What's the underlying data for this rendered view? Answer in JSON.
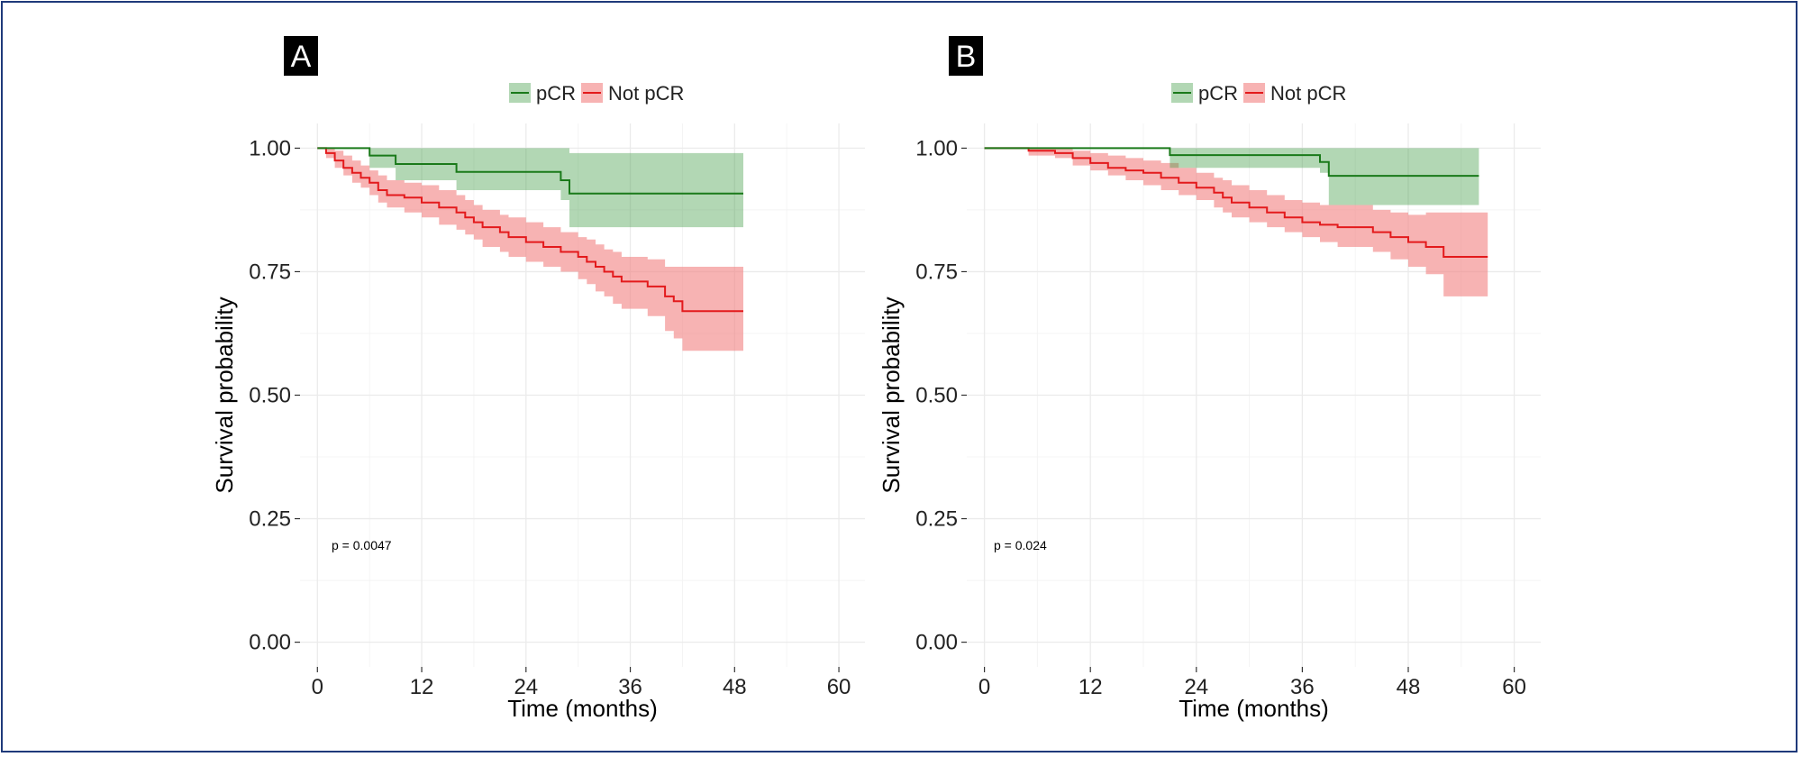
{
  "figure": {
    "border_color": "#1f3a7a"
  },
  "colors": {
    "pcr_line": "#1a7a1a",
    "pcr_band": "#3e9a44",
    "notpcr_line": "#e31a1c",
    "notpcr_band": "#f28080",
    "grid": "#ebebeb",
    "label_bg": "#000000"
  },
  "legend": {
    "items": [
      "pCR",
      "Not pCR"
    ]
  },
  "chart_data": [
    {
      "type": "line",
      "panel_label": "A",
      "xlabel": "Time (months)",
      "ylabel": "Survival probability",
      "xlim": [
        -2,
        63
      ],
      "ylim": [
        -0.05,
        1.05
      ],
      "xticks": [
        0,
        12,
        24,
        36,
        48,
        60
      ],
      "yticks": [
        0.0,
        0.25,
        0.5,
        0.75,
        1.0
      ],
      "ytick_labels": [
        "0.00",
        "0.25",
        "0.50",
        "0.75",
        "1.00"
      ],
      "p_value": "p = 0.0047",
      "series": [
        {
          "name": "pCR",
          "step": [
            [
              0,
              1.0
            ],
            [
              6,
              0.985
            ],
            [
              9,
              0.968
            ],
            [
              16,
              0.952
            ],
            [
              28,
              0.935
            ],
            [
              29,
              0.908
            ],
            [
              49,
              0.908
            ]
          ],
          "lower": [
            [
              0,
              1.0
            ],
            [
              6,
              0.96
            ],
            [
              9,
              0.935
            ],
            [
              16,
              0.915
            ],
            [
              28,
              0.895
            ],
            [
              29,
              0.84
            ],
            [
              49,
              0.835
            ]
          ],
          "upper": [
            [
              0,
              1.0
            ],
            [
              6,
              1.0
            ],
            [
              9,
              1.0
            ],
            [
              16,
              1.0
            ],
            [
              28,
              1.0
            ],
            [
              29,
              0.99
            ],
            [
              49,
              0.99
            ]
          ]
        },
        {
          "name": "Not pCR",
          "step": [
            [
              0,
              1.0
            ],
            [
              1,
              0.99
            ],
            [
              2,
              0.975
            ],
            [
              3,
              0.96
            ],
            [
              4,
              0.95
            ],
            [
              5,
              0.94
            ],
            [
              6,
              0.93
            ],
            [
              7,
              0.915
            ],
            [
              8,
              0.905
            ],
            [
              10,
              0.9
            ],
            [
              12,
              0.89
            ],
            [
              14,
              0.88
            ],
            [
              16,
              0.87
            ],
            [
              17,
              0.86
            ],
            [
              18,
              0.85
            ],
            [
              19,
              0.84
            ],
            [
              21,
              0.83
            ],
            [
              22,
              0.82
            ],
            [
              24,
              0.81
            ],
            [
              26,
              0.8
            ],
            [
              28,
              0.79
            ],
            [
              30,
              0.78
            ],
            [
              31,
              0.77
            ],
            [
              32,
              0.76
            ],
            [
              33,
              0.75
            ],
            [
              34,
              0.74
            ],
            [
              35,
              0.73
            ],
            [
              38,
              0.72
            ],
            [
              40,
              0.7
            ],
            [
              41,
              0.69
            ],
            [
              42,
              0.67
            ],
            [
              49,
              0.67
            ]
          ],
          "lower": [
            [
              0,
              1.0
            ],
            [
              1,
              0.98
            ],
            [
              2,
              0.96
            ],
            [
              3,
              0.945
            ],
            [
              4,
              0.93
            ],
            [
              5,
              0.92
            ],
            [
              6,
              0.905
            ],
            [
              7,
              0.89
            ],
            [
              8,
              0.88
            ],
            [
              10,
              0.87
            ],
            [
              12,
              0.86
            ],
            [
              14,
              0.845
            ],
            [
              16,
              0.835
            ],
            [
              17,
              0.825
            ],
            [
              18,
              0.815
            ],
            [
              19,
              0.8
            ],
            [
              21,
              0.79
            ],
            [
              22,
              0.78
            ],
            [
              24,
              0.77
            ],
            [
              26,
              0.76
            ],
            [
              28,
              0.75
            ],
            [
              30,
              0.735
            ],
            [
              31,
              0.725
            ],
            [
              32,
              0.71
            ],
            [
              33,
              0.7
            ],
            [
              34,
              0.685
            ],
            [
              35,
              0.675
            ],
            [
              38,
              0.66
            ],
            [
              40,
              0.63
            ],
            [
              41,
              0.615
            ],
            [
              42,
              0.59
            ],
            [
              49,
              0.59
            ]
          ],
          "upper": [
            [
              0,
              1.0
            ],
            [
              1,
              1.0
            ],
            [
              2,
              0.995
            ],
            [
              3,
              0.985
            ],
            [
              4,
              0.975
            ],
            [
              5,
              0.965
            ],
            [
              6,
              0.955
            ],
            [
              7,
              0.945
            ],
            [
              8,
              0.935
            ],
            [
              10,
              0.93
            ],
            [
              12,
              0.925
            ],
            [
              14,
              0.915
            ],
            [
              16,
              0.905
            ],
            [
              17,
              0.895
            ],
            [
              18,
              0.885
            ],
            [
              19,
              0.875
            ],
            [
              21,
              0.865
            ],
            [
              22,
              0.86
            ],
            [
              24,
              0.85
            ],
            [
              26,
              0.84
            ],
            [
              28,
              0.83
            ],
            [
              30,
              0.82
            ],
            [
              31,
              0.815
            ],
            [
              32,
              0.805
            ],
            [
              33,
              0.795
            ],
            [
              34,
              0.79
            ],
            [
              35,
              0.78
            ],
            [
              38,
              0.775
            ],
            [
              40,
              0.76
            ],
            [
              41,
              0.76
            ],
            [
              42,
              0.76
            ],
            [
              49,
              0.76
            ]
          ]
        }
      ]
    },
    {
      "type": "line",
      "panel_label": "B",
      "xlabel": "Time (months)",
      "ylabel": "Survival probability",
      "xlim": [
        -2,
        63
      ],
      "ylim": [
        -0.05,
        1.05
      ],
      "xticks": [
        0,
        12,
        24,
        36,
        48,
        60
      ],
      "yticks": [
        0.0,
        0.25,
        0.5,
        0.75,
        1.0
      ],
      "ytick_labels": [
        "0.00",
        "0.25",
        "0.50",
        "0.75",
        "1.00"
      ],
      "p_value": "p = 0.024",
      "series": [
        {
          "name": "pCR",
          "step": [
            [
              0,
              1.0
            ],
            [
              21,
              0.986
            ],
            [
              38,
              0.972
            ],
            [
              39,
              0.944
            ],
            [
              56,
              0.944
            ]
          ],
          "lower": [
            [
              0,
              1.0
            ],
            [
              21,
              0.96
            ],
            [
              38,
              0.95
            ],
            [
              39,
              0.885
            ],
            [
              56,
              0.885
            ]
          ],
          "upper": [
            [
              0,
              1.0
            ],
            [
              21,
              1.0
            ],
            [
              38,
              1.0
            ],
            [
              39,
              1.0
            ],
            [
              56,
              1.0
            ]
          ]
        },
        {
          "name": "Not pCR",
          "step": [
            [
              0,
              1.0
            ],
            [
              5,
              0.995
            ],
            [
              8,
              0.99
            ],
            [
              10,
              0.98
            ],
            [
              12,
              0.97
            ],
            [
              14,
              0.96
            ],
            [
              16,
              0.955
            ],
            [
              18,
              0.95
            ],
            [
              20,
              0.94
            ],
            [
              22,
              0.93
            ],
            [
              24,
              0.92
            ],
            [
              26,
              0.91
            ],
            [
              27,
              0.9
            ],
            [
              28,
              0.89
            ],
            [
              30,
              0.88
            ],
            [
              32,
              0.87
            ],
            [
              34,
              0.86
            ],
            [
              36,
              0.85
            ],
            [
              38,
              0.845
            ],
            [
              40,
              0.84
            ],
            [
              44,
              0.83
            ],
            [
              46,
              0.82
            ],
            [
              48,
              0.81
            ],
            [
              50,
              0.8
            ],
            [
              52,
              0.78
            ],
            [
              57,
              0.78
            ]
          ],
          "lower": [
            [
              0,
              1.0
            ],
            [
              5,
              0.985
            ],
            [
              8,
              0.98
            ],
            [
              10,
              0.965
            ],
            [
              12,
              0.955
            ],
            [
              14,
              0.945
            ],
            [
              16,
              0.935
            ],
            [
              18,
              0.925
            ],
            [
              20,
              0.915
            ],
            [
              22,
              0.905
            ],
            [
              24,
              0.895
            ],
            [
              26,
              0.88
            ],
            [
              27,
              0.87
            ],
            [
              28,
              0.86
            ],
            [
              30,
              0.85
            ],
            [
              32,
              0.84
            ],
            [
              34,
              0.83
            ],
            [
              36,
              0.82
            ],
            [
              38,
              0.81
            ],
            [
              40,
              0.8
            ],
            [
              44,
              0.79
            ],
            [
              46,
              0.775
            ],
            [
              48,
              0.76
            ],
            [
              50,
              0.745
            ],
            [
              52,
              0.7
            ],
            [
              57,
              0.7
            ]
          ],
          "upper": [
            [
              0,
              1.0
            ],
            [
              5,
              1.0
            ],
            [
              8,
              1.0
            ],
            [
              10,
              0.995
            ],
            [
              12,
              0.99
            ],
            [
              14,
              0.985
            ],
            [
              16,
              0.98
            ],
            [
              18,
              0.975
            ],
            [
              20,
              0.97
            ],
            [
              22,
              0.96
            ],
            [
              24,
              0.95
            ],
            [
              26,
              0.94
            ],
            [
              27,
              0.935
            ],
            [
              28,
              0.925
            ],
            [
              30,
              0.915
            ],
            [
              32,
              0.905
            ],
            [
              34,
              0.895
            ],
            [
              36,
              0.89
            ],
            [
              38,
              0.885
            ],
            [
              40,
              0.885
            ],
            [
              44,
              0.875
            ],
            [
              46,
              0.87
            ],
            [
              48,
              0.865
            ],
            [
              50,
              0.87
            ],
            [
              52,
              0.87
            ],
            [
              57,
              0.87
            ]
          ]
        }
      ]
    }
  ]
}
